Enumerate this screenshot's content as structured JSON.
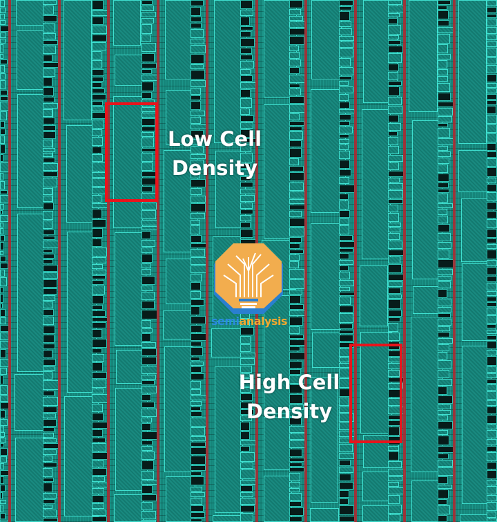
{
  "annotations": [
    {
      "label_line1": "Low Cell",
      "label_line2": "Density"
    },
    {
      "label_line1": "High Cell",
      "label_line2": "Density"
    }
  ],
  "watermark": {
    "brand_part1": "semi",
    "brand_part2": "analysis",
    "color_blue": "#2a8be0",
    "color_orange": "#f0a830"
  },
  "colors": {
    "highlight": "#e8141c",
    "power_rail": "#b3262e",
    "cell_fill": "#16857a"
  }
}
